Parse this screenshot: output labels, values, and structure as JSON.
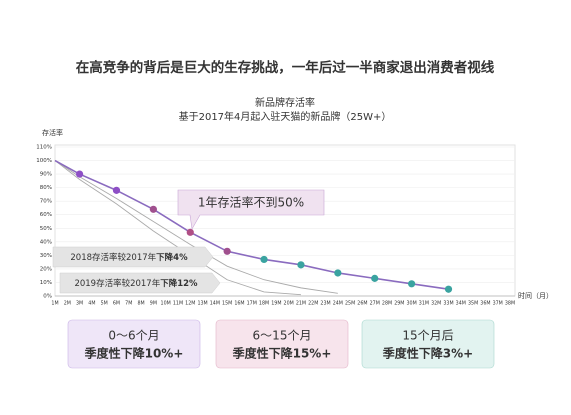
{
  "headline": "在高竞争的背后是巨大的生存挑战，一年后过一半商家退出消费者视线",
  "chart_data": {
    "type": "line",
    "title": "新品牌存活率",
    "subtitle": "基于2017年4月起入驻天猫的新品牌（25W+）",
    "y_label": "存活率",
    "x_label": "时间（月）",
    "categories": [
      "1M",
      "2M",
      "3M",
      "4M",
      "5M",
      "6M",
      "7M",
      "8M",
      "9M",
      "10M",
      "11M",
      "12M",
      "13M",
      "14M",
      "15M",
      "16M",
      "17M",
      "18M",
      "19M",
      "20M",
      "21M",
      "22M",
      "23M",
      "24M",
      "25M",
      "26M",
      "27M",
      "28M",
      "29M",
      "30M",
      "31M",
      "32M",
      "33M",
      "34M",
      "35M",
      "36M",
      "37M",
      "38M"
    ],
    "ylim": [
      0,
      110
    ],
    "yticks": [
      {
        "value": 0,
        "label": "0%"
      },
      {
        "value": 10,
        "label": "10%"
      },
      {
        "value": 20,
        "label": "20%"
      },
      {
        "value": 30,
        "label": "30%"
      },
      {
        "value": 40,
        "label": "40%"
      },
      {
        "value": 50,
        "label": "50%"
      },
      {
        "value": 60,
        "label": "60%"
      },
      {
        "value": 70,
        "label": "70%"
      },
      {
        "value": 80,
        "label": "80%"
      },
      {
        "value": 90,
        "label": "90%"
      },
      {
        "value": 100,
        "label": "100%"
      },
      {
        "value": 110,
        "label": "110%"
      }
    ],
    "grid": true,
    "series": [
      {
        "color": "#8a6bbf",
        "x": [
          1,
          3,
          6,
          9,
          12,
          15,
          18,
          21,
          24,
          27,
          30,
          33
        ],
        "values": [
          100,
          90,
          78,
          64,
          47,
          33,
          27,
          23,
          17,
          13,
          9,
          5
        ],
        "point_colors": [
          null,
          "#8e4fc6",
          "#8e4fc6",
          "#a0508e",
          "#b04f86",
          "#a0508e",
          "#3aa3a0",
          "#3aa3a0",
          "#3aa3a0",
          "#3aa3a0",
          "#3aa3a0",
          "#3aa3a0"
        ]
      },
      {
        "color": "#aaaaaa",
        "x": [
          1,
          3,
          6,
          9,
          12,
          15,
          18,
          21,
          24
        ],
        "values": [
          100,
          88,
          72,
          55,
          38,
          22,
          12,
          6,
          2
        ]
      },
      {
        "color": "#aaaaaa",
        "x": [
          1,
          3,
          6,
          9,
          12,
          15,
          18,
          21
        ],
        "values": [
          100,
          86,
          68,
          48,
          30,
          12,
          3,
          1
        ]
      }
    ],
    "callouts": [
      {
        "text": "1年存活率不到50%"
      },
      {
        "parts": [
          "2018存活率较2017年",
          "下降4%"
        ]
      },
      {
        "parts": [
          "2019存活率较2017年",
          "下降12%"
        ]
      }
    ],
    "boxes": [
      {
        "period": "0～6个月",
        "trend": "季度性下降10%+"
      },
      {
        "period": "6～15个月",
        "trend": "季度性下降15%+"
      },
      {
        "period": "15个月后",
        "trend": "季度性下降3%+"
      }
    ]
  }
}
